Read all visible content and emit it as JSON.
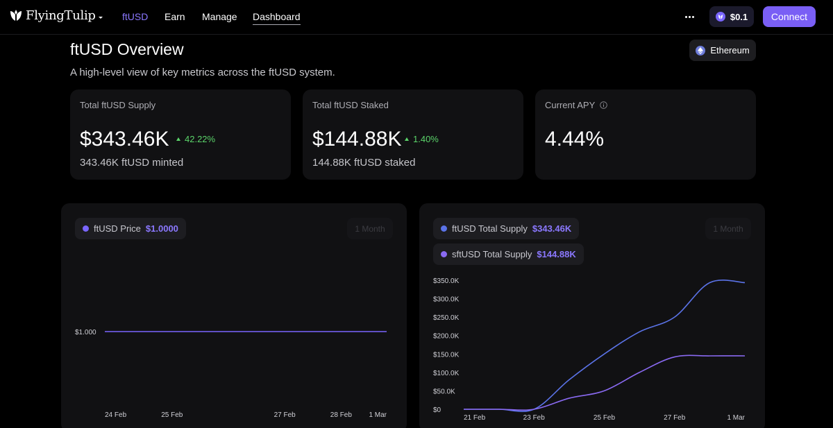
{
  "brand": {
    "name": "FlyingTulip"
  },
  "nav": {
    "links": [
      {
        "label": "ftUSD"
      },
      {
        "label": "Earn"
      },
      {
        "label": "Manage"
      },
      {
        "label": "Dashboard"
      }
    ],
    "balance": "$0.1",
    "connect_label": "Connect",
    "more_icon": "ellipsis-icon"
  },
  "header": {
    "title": "ftUSD Overview",
    "subtitle": "A high-level view of key metrics across the ftUSD system.",
    "network": "Ethereum"
  },
  "stats": [
    {
      "label": "Total ftUSD Supply",
      "value": "$343.46K",
      "change": "42.22%",
      "sub": "343.46K ftUSD minted"
    },
    {
      "label": "Total ftUSD Staked",
      "value": "$144.88K",
      "change": "1.40%",
      "sub": "144.88K ftUSD staked"
    },
    {
      "label": "Current APY",
      "value": "4.44%"
    }
  ],
  "colors": {
    "accent": "#7a5ff5",
    "price_line": "#7a66ff",
    "supply_line": "#5b73e8",
    "staked_line": "#8a6af2",
    "positive": "#5bd46a"
  },
  "price_chart": {
    "legend": {
      "label": "ftUSD Price",
      "value": "$1.0000"
    },
    "range": "1 Month",
    "chart_data": {
      "type": "line",
      "x": [
        "24 Feb",
        "25 Feb",
        "26 Feb",
        "27 Feb",
        "28 Feb",
        "1 Mar"
      ],
      "series": [
        {
          "name": "ftUSD Price",
          "values": [
            1.0,
            1.0,
            1.0,
            1.0,
            1.0,
            1.0
          ]
        }
      ],
      "x_ticks": [
        "24 Feb",
        "25 Feb",
        "27 Feb",
        "28 Feb",
        "1 Mar"
      ],
      "y_ticks": [
        "$1.000"
      ],
      "grid": false
    }
  },
  "supply_chart": {
    "legend": [
      {
        "label": "ftUSD Total Supply",
        "value": "$343.46K"
      },
      {
        "label": "sftUSD Total Supply",
        "value": "$144.88K"
      }
    ],
    "range": "1 Month",
    "chart_data": {
      "type": "line",
      "x": [
        "21 Feb",
        "22 Feb",
        "23 Feb",
        "24 Feb",
        "25 Feb",
        "26 Feb",
        "27 Feb",
        "28 Feb",
        "1 Mar"
      ],
      "series": [
        {
          "name": "ftUSD Total Supply",
          "values": [
            0,
            0,
            0,
            80000,
            150000,
            210000,
            250000,
            343460,
            343460
          ]
        },
        {
          "name": "sftUSD Total Supply",
          "values": [
            0,
            0,
            0,
            30000,
            50000,
            100000,
            142000,
            144880,
            144880
          ]
        }
      ],
      "x_ticks": [
        "21 Feb",
        "23 Feb",
        "25 Feb",
        "27 Feb",
        "1 Mar"
      ],
      "y_ticks": [
        "$0",
        "$50.0K",
        "$100.0K",
        "$150.0K",
        "$200.0K",
        "$250.0K",
        "$300.0K",
        "$350.0K"
      ],
      "ylim": [
        0,
        350000
      ],
      "grid": false
    }
  }
}
